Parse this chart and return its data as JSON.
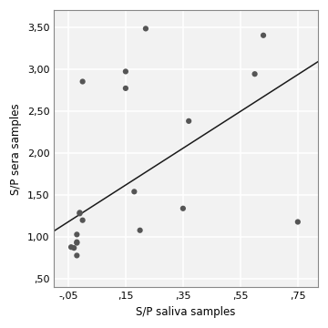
{
  "x_data": [
    -0.04,
    -0.03,
    -0.02,
    -0.02,
    -0.02,
    -0.02,
    -0.01,
    -0.01,
    0.0,
    0.0,
    0.15,
    0.15,
    0.18,
    0.2,
    0.22,
    0.35,
    0.37,
    0.6,
    0.63,
    0.75
  ],
  "y_data": [
    0.88,
    0.87,
    0.93,
    0.94,
    1.03,
    0.78,
    1.28,
    1.29,
    1.2,
    2.85,
    2.77,
    2.97,
    1.54,
    1.08,
    3.48,
    1.34,
    2.38,
    2.94,
    3.4,
    1.18
  ],
  "regression_intercept": 1.29,
  "regression_slope": 2.19,
  "xlim": [
    -0.1,
    0.82
  ],
  "ylim": [
    0.4,
    3.7
  ],
  "xticks": [
    -0.05,
    0.15,
    0.35,
    0.55,
    0.75
  ],
  "yticks": [
    0.5,
    1.0,
    1.5,
    2.0,
    2.5,
    3.0,
    3.5
  ],
  "xlabel": "S/P saliva samples",
  "ylabel": "S/P sera samples",
  "marker_color": "#555555",
  "marker_size": 20,
  "line_color": "#1a1a1a",
  "background_color": "#f2f2f2",
  "grid_color": "#ffffff",
  "spine_color": "#888888"
}
